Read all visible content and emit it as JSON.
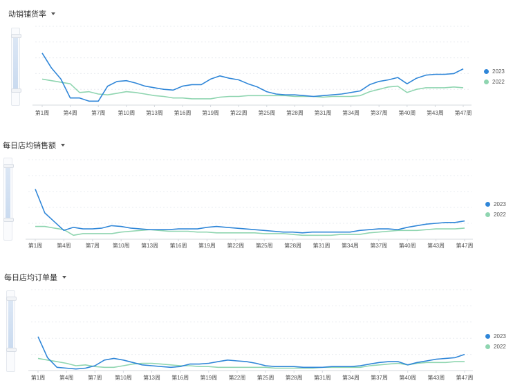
{
  "colors": {
    "s2023": "#2f86d8",
    "s2022": "#8fd5b0",
    "grid": "#e9ecf0",
    "axis": "#d4d8de"
  },
  "chart_data": [
    {
      "type": "line",
      "title": "动销铺货率",
      "x_tick_labels": [
        "第1周",
        "第4周",
        "第7周",
        "第10周",
        "第13周",
        "第16周",
        "第19周",
        "第22周",
        "第25周",
        "第28周",
        "第31周",
        "第34周",
        "第37周",
        "第40周",
        "第43周",
        "第47周"
      ],
      "ylim": [
        0,
        100
      ],
      "grid": true,
      "legend_position": "right",
      "series": [
        {
          "name": "2023",
          "values": [
            66,
            47,
            33,
            9,
            9,
            5,
            5,
            24,
            30,
            31,
            28,
            24,
            22,
            20,
            19,
            24,
            26,
            26,
            33,
            37,
            34,
            32,
            27,
            23,
            17,
            14,
            13,
            13,
            12,
            11,
            12,
            13,
            14,
            16,
            18,
            26,
            30,
            32,
            35,
            27,
            34,
            38,
            39,
            39,
            40,
            46
          ]
        },
        {
          "name": "2022",
          "values": [
            33,
            31,
            29,
            27,
            16,
            17,
            14,
            13,
            15,
            17,
            16,
            14,
            12,
            11,
            9,
            9,
            8,
            8,
            8,
            10,
            11,
            11,
            12,
            12,
            12,
            12,
            12,
            11,
            11,
            11,
            10,
            11,
            11,
            11,
            12,
            17,
            20,
            23,
            24,
            16,
            20,
            22,
            22,
            22,
            23,
            22
          ]
        }
      ]
    },
    {
      "type": "line",
      "title": "每日店均销售额",
      "x_tick_labels": [
        "第1周",
        "第4周",
        "第7周",
        "第10周",
        "第13周",
        "第16周",
        "第19周",
        "第22周",
        "第25周",
        "第28周",
        "第31周",
        "第34周",
        "第37周",
        "第40周",
        "第43周",
        "第47周"
      ],
      "ylim": [
        0,
        100
      ],
      "grid": true,
      "legend_position": "right",
      "series": [
        {
          "name": "2023",
          "values": [
            63,
            33,
            22,
            11,
            15,
            13,
            13,
            14,
            17,
            16,
            14,
            13,
            12,
            12,
            12,
            13,
            13,
            13,
            15,
            16,
            15,
            14,
            13,
            12,
            11,
            10,
            9,
            9,
            8,
            9,
            9,
            9,
            9,
            9,
            11,
            12,
            13,
            13,
            12,
            15,
            17,
            19,
            20,
            21,
            21,
            23
          ]
        },
        {
          "name": "2022",
          "values": [
            16,
            16,
            14,
            12,
            5,
            7,
            7,
            7,
            7,
            9,
            10,
            11,
            12,
            11,
            10,
            10,
            10,
            9,
            9,
            8,
            8,
            8,
            8,
            8,
            7,
            7,
            7,
            6,
            5,
            5,
            5,
            5,
            6,
            6,
            6,
            8,
            9,
            10,
            11,
            11,
            11,
            12,
            13,
            13,
            13,
            14
          ]
        }
      ]
    },
    {
      "type": "line",
      "title": "每日店均订单量",
      "x_tick_labels": [
        "第1周",
        "第4周",
        "第7周",
        "第10周",
        "第13周",
        "第16周",
        "第19周",
        "第22周",
        "第25周",
        "第28周",
        "第31周",
        "第34周",
        "第37周",
        "第40周",
        "第43周",
        "第47周"
      ],
      "ylim": [
        0,
        100
      ],
      "grid": true,
      "legend_position": "right",
      "series": [
        {
          "name": "2023",
          "values": [
            42,
            16,
            4,
            3,
            2,
            3,
            6,
            13,
            15,
            13,
            10,
            7,
            6,
            5,
            4,
            5,
            8,
            8,
            9,
            11,
            13,
            12,
            11,
            9,
            6,
            5,
            5,
            5,
            4,
            4,
            4,
            5,
            5,
            5,
            6,
            8,
            10,
            11,
            11,
            7,
            10,
            12,
            14,
            15,
            16,
            20
          ]
        },
        {
          "name": "2022",
          "values": [
            15,
            13,
            11,
            9,
            6,
            7,
            5,
            4,
            4,
            6,
            8,
            9,
            9,
            8,
            7,
            6,
            6,
            5,
            5,
            4,
            4,
            4,
            4,
            4,
            4,
            3,
            3,
            3,
            3,
            3,
            4,
            4,
            4,
            4,
            4,
            6,
            7,
            8,
            9,
            7,
            9,
            10,
            10,
            10,
            11,
            11
          ]
        }
      ]
    }
  ]
}
